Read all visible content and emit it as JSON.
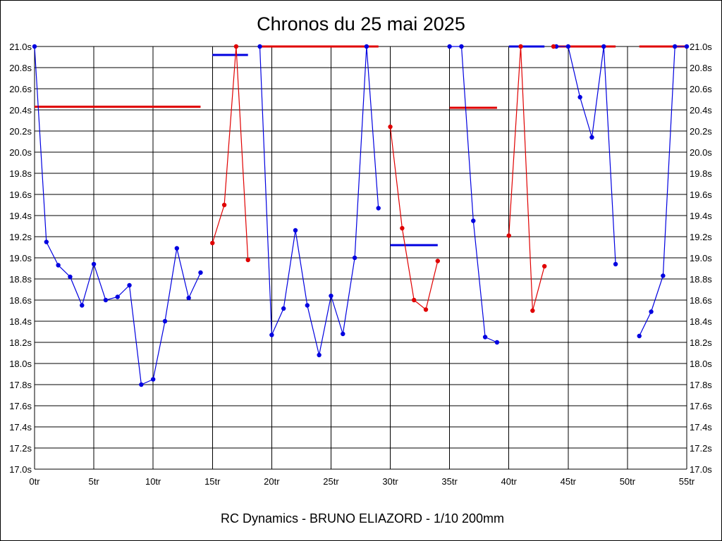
{
  "chart_data": {
    "type": "line",
    "title": "Chronos du 25 mai 2025",
    "footer": "RC Dynamics - BRUNO ELIAZORD - 1/10 200mm",
    "xlabel": "",
    "ylabel": "",
    "xlim": [
      0,
      55
    ],
    "ylim": [
      17.0,
      21.0
    ],
    "grid": true,
    "legend": "none",
    "x_ticks": [
      {
        "value": 0,
        "label": "0tr"
      },
      {
        "value": 5,
        "label": "5tr"
      },
      {
        "value": 10,
        "label": "10tr"
      },
      {
        "value": 15,
        "label": "15tr"
      },
      {
        "value": 20,
        "label": "20tr"
      },
      {
        "value": 25,
        "label": "25tr"
      },
      {
        "value": 30,
        "label": "30tr"
      },
      {
        "value": 35,
        "label": "35tr"
      },
      {
        "value": 40,
        "label": "40tr"
      },
      {
        "value": 45,
        "label": "45tr"
      },
      {
        "value": 50,
        "label": "50tr"
      },
      {
        "value": 55,
        "label": "55tr"
      }
    ],
    "y_ticks": [
      {
        "value": 21.0,
        "label": "21.0s"
      },
      {
        "value": 20.8,
        "label": "20.8s"
      },
      {
        "value": 20.6,
        "label": "20.6s"
      },
      {
        "value": 20.4,
        "label": "20.4s"
      },
      {
        "value": 20.2,
        "label": "20.2s"
      },
      {
        "value": 20.0,
        "label": "20.0s"
      },
      {
        "value": 19.8,
        "label": "19.8s"
      },
      {
        "value": 19.6,
        "label": "19.6s"
      },
      {
        "value": 19.4,
        "label": "19.4s"
      },
      {
        "value": 19.2,
        "label": "19.2s"
      },
      {
        "value": 19.0,
        "label": "19.0s"
      },
      {
        "value": 18.8,
        "label": "18.8s"
      },
      {
        "value": 18.6,
        "label": "18.6s"
      },
      {
        "value": 18.4,
        "label": "18.4s"
      },
      {
        "value": 18.2,
        "label": "18.2s"
      },
      {
        "value": 18.0,
        "label": "18.0s"
      },
      {
        "value": 17.8,
        "label": "17.8s"
      },
      {
        "value": 17.6,
        "label": "17.6s"
      },
      {
        "value": 17.4,
        "label": "17.4s"
      },
      {
        "value": 17.2,
        "label": "17.2s"
      },
      {
        "value": 17.0,
        "label": "17.0s"
      }
    ],
    "colors": {
      "blue": "#0000e0",
      "red": "#e00000",
      "grid": "#000000"
    },
    "series": [
      {
        "color": "#0000e0",
        "points": [
          [
            0,
            21.0
          ],
          [
            1,
            19.15
          ],
          [
            2,
            18.93
          ],
          [
            3,
            18.82
          ],
          [
            4,
            18.55
          ],
          [
            5,
            18.94
          ],
          [
            6,
            18.6
          ],
          [
            7,
            18.63
          ],
          [
            8,
            18.74
          ],
          [
            9,
            17.8
          ],
          [
            10,
            17.85
          ],
          [
            11,
            18.4
          ],
          [
            12,
            19.09
          ],
          [
            13,
            18.62
          ],
          [
            14,
            18.86
          ]
        ]
      },
      {
        "color": "#e00000",
        "points": [
          [
            15,
            19.14
          ],
          [
            16,
            19.5
          ],
          [
            17,
            21.0
          ],
          [
            18,
            18.98
          ]
        ]
      },
      {
        "color": "#0000e0",
        "points": [
          [
            19,
            21.0
          ],
          [
            20,
            18.27
          ],
          [
            21,
            18.52
          ],
          [
            22,
            19.26
          ],
          [
            23,
            18.55
          ],
          [
            24,
            18.08
          ],
          [
            25,
            18.64
          ],
          [
            26,
            18.28
          ],
          [
            27,
            19.0
          ],
          [
            28,
            21.0
          ],
          [
            29,
            19.47
          ]
        ]
      },
      {
        "color": "#e00000",
        "points": [
          [
            30,
            20.24
          ],
          [
            31,
            19.28
          ],
          [
            32,
            18.6
          ],
          [
            33,
            18.51
          ],
          [
            34,
            18.97
          ]
        ]
      },
      {
        "color": "#0000e0",
        "points": [
          [
            35,
            21.0
          ],
          [
            36,
            21.0
          ],
          [
            37,
            19.35
          ],
          [
            38,
            18.25
          ],
          [
            39,
            18.2
          ]
        ]
      },
      {
        "color": "#e00000",
        "points": [
          [
            40,
            19.21
          ],
          [
            41,
            21.0
          ],
          [
            42,
            18.5
          ],
          [
            43,
            18.92
          ]
        ]
      },
      {
        "color": "#0000e0",
        "points": [
          [
            44,
            21.0
          ],
          [
            45,
            21.0
          ],
          [
            46,
            20.52
          ],
          [
            47,
            20.14
          ],
          [
            48,
            21.0
          ],
          [
            49,
            18.94
          ]
        ]
      },
      {
        "color": "#0000e0",
        "points": [
          [
            51,
            18.26
          ],
          [
            52,
            18.49
          ],
          [
            53,
            18.83
          ],
          [
            54,
            21.0
          ],
          [
            55,
            21.0
          ]
        ]
      }
    ],
    "averages": [
      {
        "color": "#e00000",
        "x_start": 0,
        "x_end": 14,
        "y": 20.43
      },
      {
        "color": "#0000e0",
        "x_start": 15,
        "x_end": 18,
        "y": 20.92
      },
      {
        "color": "#e00000",
        "x_start": 19,
        "x_end": 29,
        "y": 21.0
      },
      {
        "color": "#0000e0",
        "x_start": 30,
        "x_end": 34,
        "y": 19.12
      },
      {
        "color": "#e00000",
        "x_start": 35,
        "x_end": 39,
        "y": 20.42
      },
      {
        "color": "#0000e0",
        "x_start": 40,
        "x_end": 43,
        "y": 21.0
      },
      {
        "color": "#e00000",
        "x_start": 44,
        "x_end": 49,
        "y": 21.0
      },
      {
        "color": "#e00000",
        "x_start": 51,
        "x_end": 55,
        "y": 21.0
      }
    ],
    "extra_markers": [
      {
        "color": "#e00000",
        "x": 44,
        "y": 21.0
      }
    ]
  }
}
